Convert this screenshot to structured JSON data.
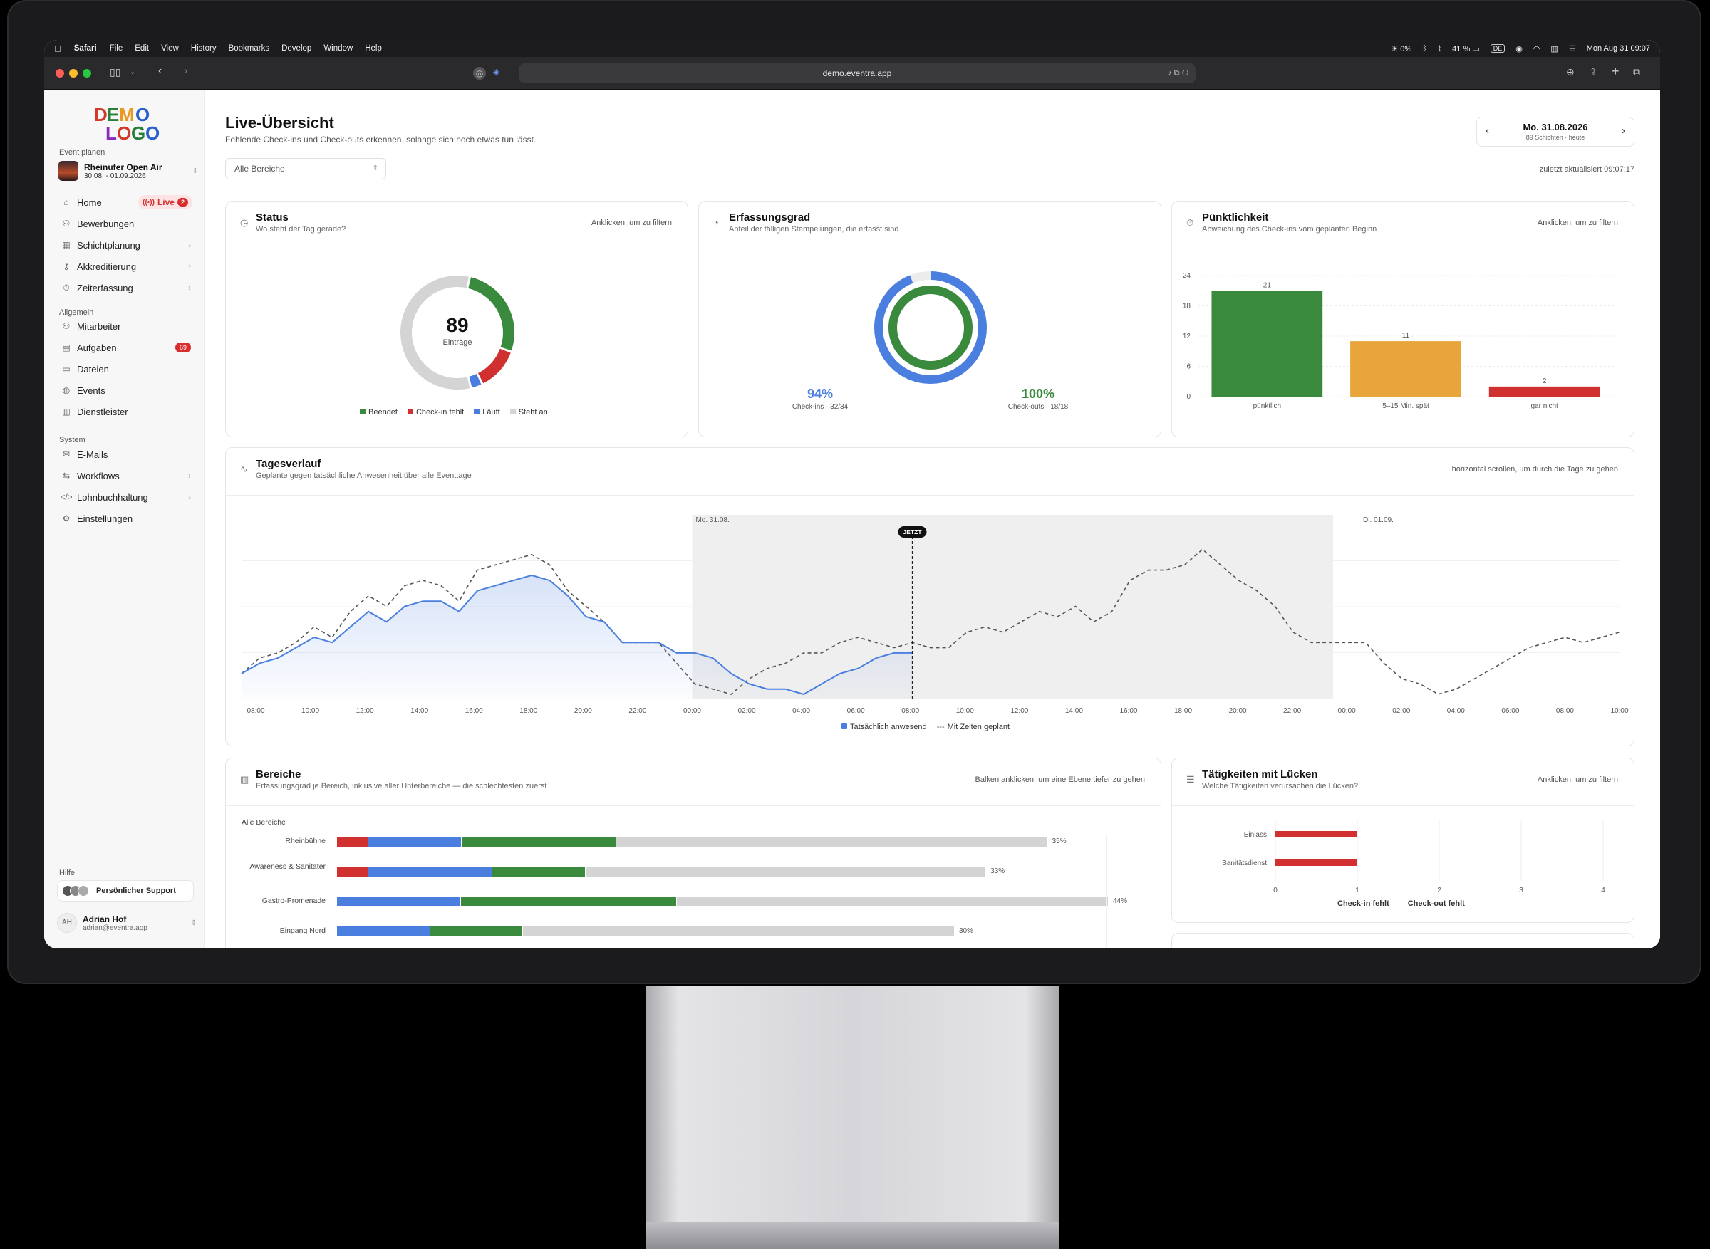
{
  "menubar": {
    "app": "Safari",
    "items": [
      "File",
      "Edit",
      "View",
      "History",
      "Bookmarks",
      "Develop",
      "Window",
      "Help"
    ],
    "brightness": "0%",
    "battery": "41 %",
    "input": "DE",
    "clock": "Mon Aug 31  09:07"
  },
  "browser": {
    "url": "demo.eventra.app"
  },
  "sidebar": {
    "logo_line1": "DEMO",
    "logo_line2": "LOGO",
    "section_event": "Event planen",
    "event": {
      "name": "Rheinufer Open Air",
      "dates": "30.08. - 01.09.2026"
    },
    "nav_event": [
      {
        "label": "Home",
        "icon": "home-icon"
      },
      {
        "label": "Bewerbungen",
        "icon": "user-plus-icon"
      },
      {
        "label": "Schichtplanung",
        "icon": "calendar-icon"
      },
      {
        "label": "Akkreditierung",
        "icon": "key-icon"
      },
      {
        "label": "Zeiterfassung",
        "icon": "stopwatch-icon"
      }
    ],
    "live_label": "Live",
    "live_count": "2",
    "section_general": "Allgemein",
    "nav_general": [
      {
        "label": "Mitarbeiter",
        "icon": "users-icon"
      },
      {
        "label": "Aufgaben",
        "icon": "clipboard-icon",
        "badge": "69"
      },
      {
        "label": "Dateien",
        "icon": "file-icon"
      },
      {
        "label": "Events",
        "icon": "globe-icon"
      },
      {
        "label": "Dienstleister",
        "icon": "building-icon"
      }
    ],
    "section_system": "System",
    "nav_system": [
      {
        "label": "E-Mails",
        "icon": "mail-icon"
      },
      {
        "label": "Workflows",
        "icon": "workflow-icon"
      },
      {
        "label": "Lohnbuchhaltung",
        "icon": "code-icon"
      },
      {
        "label": "Einstellungen",
        "icon": "gear-icon"
      }
    ],
    "section_help": "Hilfe",
    "support_label": "Persönlicher Support",
    "user": {
      "initials": "AH",
      "name": "Adrian Hof",
      "email": "adrian@eventra.app"
    }
  },
  "header": {
    "title": "Live-Übersicht",
    "subtitle": "Fehlende Check-ins und Check-outs erkennen, solange sich noch etwas tun lässt.",
    "date": "Mo. 31.08.2026",
    "date_sub": "89 Schichten · heute",
    "filter": "Alle Bereiche",
    "updated": "zuletzt aktualisiert 09:07:17"
  },
  "status_card": {
    "title": "Status",
    "subtitle": "Wo steht der Tag gerade?",
    "hint": "Anklicken, um zu filtern",
    "total": "89",
    "total_label": "Einträge",
    "legend": [
      {
        "label": "Beendet",
        "color": "#3a8a3e"
      },
      {
        "label": "Check-in fehlt",
        "color": "#d03030"
      },
      {
        "label": "Läuft",
        "color": "#4a7fe0"
      },
      {
        "label": "Steht an",
        "color": "#d4d4d4"
      }
    ],
    "slices": [
      24,
      11,
      3,
      51
    ]
  },
  "coverage_card": {
    "title": "Erfassungsgrad",
    "subtitle": "Anteil der fälligen Stempelungen, die erfasst sind",
    "checkin_pct": "94%",
    "checkin_label": "Check-ins · 32/34",
    "checkout_pct": "100%",
    "checkout_label": "Check-outs · 18/18",
    "checkin_value": 0.94,
    "checkout_value": 1.0,
    "checkin_color": "#4a7fe0",
    "checkout_color": "#3a8a3e"
  },
  "punct_card": {
    "title": "Pünktlichkeit",
    "subtitle": "Abweichung des Check-ins vom geplanten Beginn",
    "hint": "Anklicken, um zu filtern"
  },
  "chart_data": [
    {
      "type": "bar",
      "categories": [
        "pünktlich",
        "5–15 Min. spät",
        "gar nicht"
      ],
      "values": [
        21,
        11,
        2
      ],
      "colors": [
        "#3a8a3e",
        "#e8a53c",
        "#d03030"
      ],
      "yticks": [
        "0",
        "6",
        "12",
        "18",
        "24"
      ],
      "ylim": [
        0,
        24
      ]
    },
    {
      "type": "area",
      "title": "Tagesverlauf",
      "xticks": [
        "08:00",
        "10:00",
        "12:00",
        "14:00",
        "16:00",
        "18:00",
        "20:00",
        "22:00",
        "00:00",
        "02:00",
        "04:00",
        "06:00",
        "08:00",
        "10:00",
        "12:00",
        "14:00",
        "16:00",
        "18:00",
        "20:00",
        "22:00",
        "00:00",
        "02:00",
        "04:00",
        "06:00",
        "08:00",
        "10:00"
      ],
      "series": [
        {
          "name": "Tatsächlich anwesend",
          "color": "#4a7fe0",
          "values": [
            4,
            6,
            7,
            9,
            11,
            10,
            13,
            16,
            14,
            17,
            18,
            18,
            16,
            20,
            21,
            22,
            23,
            22,
            19,
            15,
            14,
            10,
            10,
            10,
            8,
            8,
            7,
            4,
            2,
            1,
            1,
            0,
            2,
            4,
            5,
            7,
            8,
            8
          ]
        },
        {
          "name": "Mit Zeiten geplant",
          "color": "#555555",
          "values": [
            4,
            7,
            8,
            10,
            13,
            11,
            16,
            19,
            17,
            21,
            22,
            21,
            18,
            24,
            25,
            26,
            27,
            25,
            20,
            17,
            14,
            10,
            10,
            10,
            6,
            2,
            1,
            0,
            3,
            5,
            6,
            8,
            8,
            10,
            11,
            10,
            9,
            10,
            9,
            9,
            12,
            13,
            12,
            14,
            16,
            15,
            17,
            14,
            16,
            22,
            24,
            24,
            25,
            28,
            25,
            22,
            20,
            17,
            12,
            10,
            10,
            10,
            10,
            6,
            3,
            2,
            0,
            1,
            3,
            5,
            7,
            9,
            10,
            11,
            10,
            11,
            12
          ]
        }
      ],
      "jetzt": "JETZT",
      "band_label_1": "Mo. 31.08.",
      "band_label_2": "Di. 01.09."
    }
  ],
  "timeline_card": {
    "title": "Tagesverlauf",
    "subtitle": "Geplante gegen tatsächliche Anwesenheit über alle Eventtage",
    "hint": "horizontal scrollen, um durch die Tage zu gehen",
    "legend_actual": "Tatsächlich anwesend",
    "legend_plan": "Mit Zeiten geplant"
  },
  "areas_card": {
    "title": "Bereiche",
    "subtitle": "Erfassungsgrad je Bereich, inklusive aller Unterbereiche — die schlechtesten zuerst",
    "hint": "Balken anklicken, um eine Ebene tiefer zu gehen",
    "breadcrumb": "Alle Bereiche",
    "rows": [
      {
        "label": "Rheinbühne",
        "pct": "35%",
        "red": 4,
        "blue": 12,
        "green": 20,
        "grey": 56
      },
      {
        "label": "Awareness & Sanitäter",
        "pct": "33%",
        "red": 4,
        "blue": 16,
        "green": 12,
        "grey": 52
      },
      {
        "label": "Gastro-Promenade",
        "pct": "44%",
        "red": 0,
        "blue": 16,
        "green": 28,
        "grey": 56
      },
      {
        "label": "Eingang Nord",
        "pct": "30%",
        "red": 0,
        "blue": 12,
        "green": 12,
        "grey": 56
      }
    ]
  },
  "gaps_card": {
    "title": "Tätigkeiten mit Lücken",
    "subtitle": "Welche Tätigkeiten verursachen die Lücken?",
    "hint": "Anklicken, um zu filtern",
    "rows": [
      {
        "label": "Einlass",
        "value": 1
      },
      {
        "label": "Sanitätsdienst",
        "value": 1
      }
    ],
    "xticks": [
      "0",
      "1",
      "2",
      "3",
      "4"
    ],
    "legend_in": "Check-in fehlt",
    "legend_out": "Check-out fehlt"
  }
}
